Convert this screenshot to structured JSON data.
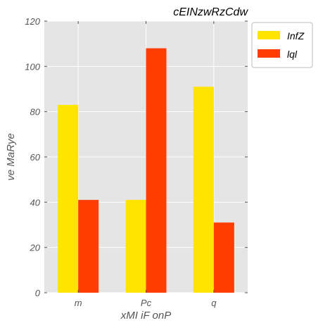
{
  "chart_data": {
    "type": "bar",
    "title": "cEINzwRzCdw",
    "xlabel": "xMI iF onP",
    "ylabel": "ve MaRye",
    "categories": [
      "m",
      "Pc",
      "q"
    ],
    "series": [
      {
        "name": "InfZ",
        "values": [
          83,
          41,
          91
        ],
        "color": "#ffe400"
      },
      {
        "name": "lql",
        "values": [
          41,
          108,
          31
        ],
        "color": "#ff3d00"
      }
    ],
    "ylim": [
      0,
      120
    ],
    "yticks": [
      0,
      20,
      40,
      60,
      80,
      100,
      120
    ],
    "grid": true,
    "legend_position": "outside-top-right",
    "plot_background": "#e5e5e5",
    "grid_color": "#ffffff"
  }
}
